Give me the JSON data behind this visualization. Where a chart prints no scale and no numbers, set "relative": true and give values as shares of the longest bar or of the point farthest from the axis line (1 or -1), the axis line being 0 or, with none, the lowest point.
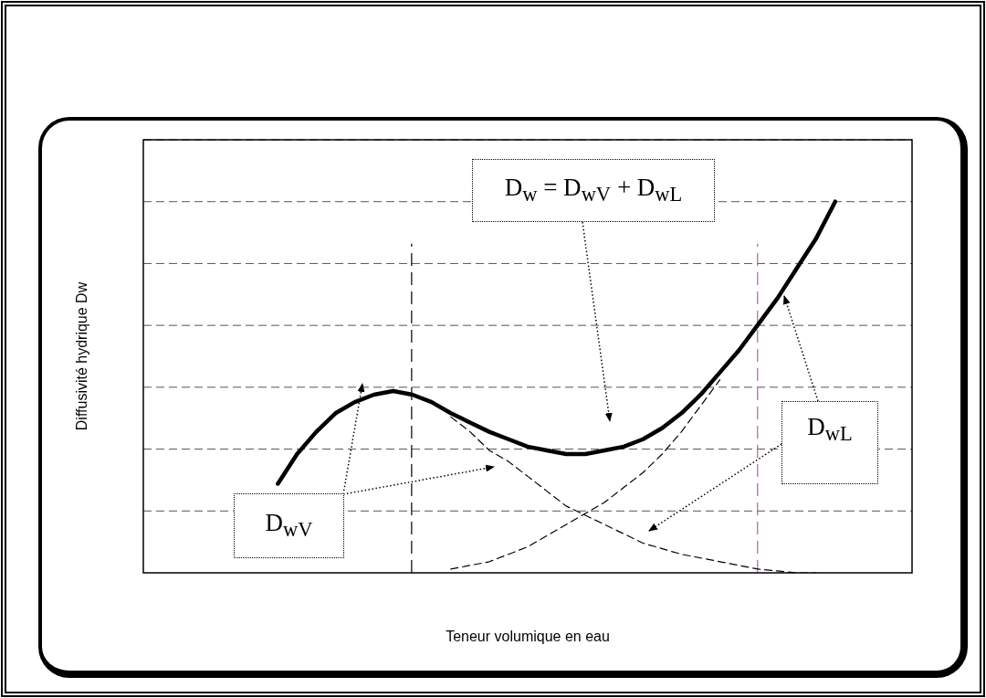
{
  "chart_data": {
    "type": "line",
    "relative": true,
    "xlabel": "Teneur volumique en eau",
    "ylabel": "Diffusivité hydrique Dw",
    "tick_labels": false,
    "grid": "y",
    "legend": false,
    "marker": "none",
    "categories": [
      null,
      null,
      null,
      null,
      null,
      null,
      null,
      null,
      null,
      null,
      null,
      null,
      null,
      null,
      null,
      null,
      null,
      null,
      null,
      null,
      null,
      null,
      null,
      null,
      null,
      null,
      null,
      null,
      null,
      null,
      null,
      null,
      null,
      null,
      null,
      null,
      null,
      null,
      null,
      null,
      null
    ],
    "series": [
      {
        "color": "#000000",
        "line_style": "solid",
        "values": [
          null,
          null,
          null,
          null,
          null,
          null,
          null,
          0.24,
          0.32,
          0.38,
          0.43,
          0.46,
          0.48,
          0.49,
          0.48,
          0.46,
          0.43,
          0.405,
          0.38,
          0.36,
          0.34,
          0.33,
          0.32,
          0.32,
          0.33,
          0.34,
          0.36,
          0.39,
          0.43,
          0.48,
          0.54,
          0.6,
          0.67,
          0.74,
          0.82,
          0.9,
          1,
          null,
          null,
          null,
          null
        ]
      },
      {
        "color": "#000000",
        "line_style": "dashed",
        "values": [
          null,
          null,
          null,
          null,
          null,
          null,
          null,
          null,
          null,
          null,
          null,
          null,
          null,
          null,
          null,
          null,
          0.42,
          0.38,
          0.33,
          0.3,
          0.26,
          0.22,
          0.18,
          0.155,
          0.13,
          0.105,
          0.08,
          0.065,
          0.05,
          0.04,
          0.03,
          0.02,
          0.01,
          0.005,
          0,
          0,
          null,
          null,
          null,
          null,
          null
        ]
      },
      {
        "color": "#000000",
        "line_style": "dashed",
        "values": [
          null,
          null,
          null,
          null,
          null,
          null,
          null,
          null,
          null,
          null,
          null,
          null,
          null,
          null,
          null,
          null,
          0.01,
          0.02,
          0.03,
          0.05,
          0.07,
          0.1,
          0.13,
          0.16,
          0.19,
          0.23,
          0.27,
          0.32,
          0.38,
          0.45,
          0.52,
          null,
          null,
          null,
          null,
          null,
          null,
          null,
          null,
          null,
          null
        ]
      }
    ],
    "annotations": [
      "D$_{w}$ = D$_{wV}$ + D$_{wL}$",
      "D$_{wV}$",
      "D$_{wL}$"
    ]
  }
}
